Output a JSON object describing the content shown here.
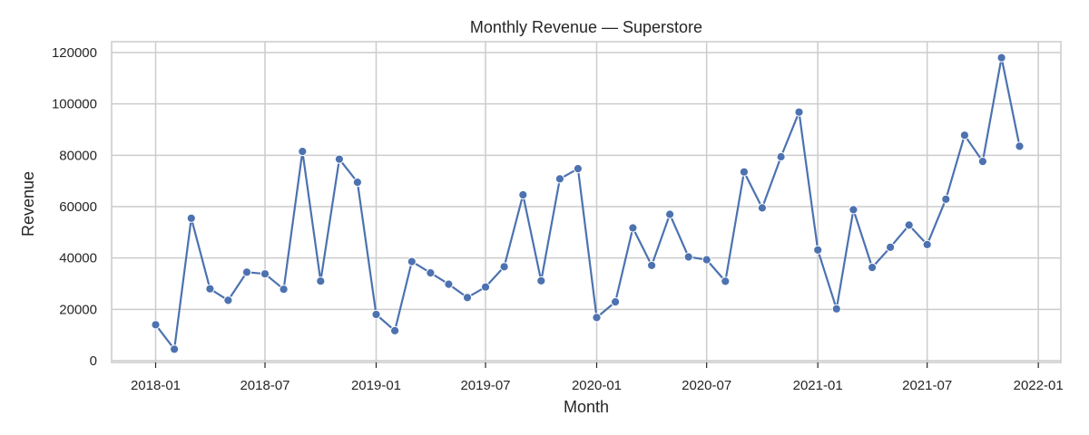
{
  "chart_data": {
    "type": "line",
    "title": "Monthly Revenue — Superstore",
    "xlabel": "Month",
    "ylabel": "Revenue",
    "ylim": [
      0,
      120000
    ],
    "yticks": [
      0,
      20000,
      40000,
      60000,
      80000,
      100000,
      120000
    ],
    "xticks": [
      "2018-01",
      "2018-07",
      "2019-01",
      "2019-07",
      "2020-01",
      "2020-07",
      "2021-01",
      "2021-07",
      "2022-01"
    ],
    "grid": true,
    "color": "#4c72b0",
    "series": [
      {
        "x": [
          "2018-01",
          "2018-02",
          "2018-03",
          "2018-04",
          "2018-05",
          "2018-06",
          "2018-07",
          "2018-08",
          "2018-09",
          "2018-10",
          "2018-11",
          "2018-12",
          "2019-01",
          "2019-02",
          "2019-03",
          "2019-04",
          "2019-05",
          "2019-06",
          "2019-07",
          "2019-08",
          "2019-09",
          "2019-10",
          "2019-11",
          "2019-12",
          "2020-01",
          "2020-02",
          "2020-03",
          "2020-04",
          "2020-05",
          "2020-06",
          "2020-07",
          "2020-08",
          "2020-09",
          "2020-10",
          "2020-11",
          "2020-12",
          "2021-01",
          "2021-02",
          "2021-03",
          "2021-04",
          "2021-05",
          "2021-06",
          "2021-07",
          "2021-08",
          "2021-09",
          "2021-10",
          "2021-11",
          "2021-12"
        ],
        "values": [
          14000,
          4500,
          55500,
          28000,
          23500,
          34500,
          33800,
          27800,
          81500,
          31000,
          78500,
          69500,
          18000,
          11700,
          38600,
          34200,
          29800,
          24600,
          28700,
          36600,
          64600,
          31100,
          70800,
          74800,
          16800,
          22900,
          51700,
          37100,
          57000,
          40400,
          39300,
          30900,
          73500,
          59500,
          79400,
          96800,
          43100,
          20200,
          58800,
          36300,
          44200,
          52800,
          45200,
          62900,
          87800,
          77600,
          118000,
          83500
        ]
      }
    ]
  }
}
